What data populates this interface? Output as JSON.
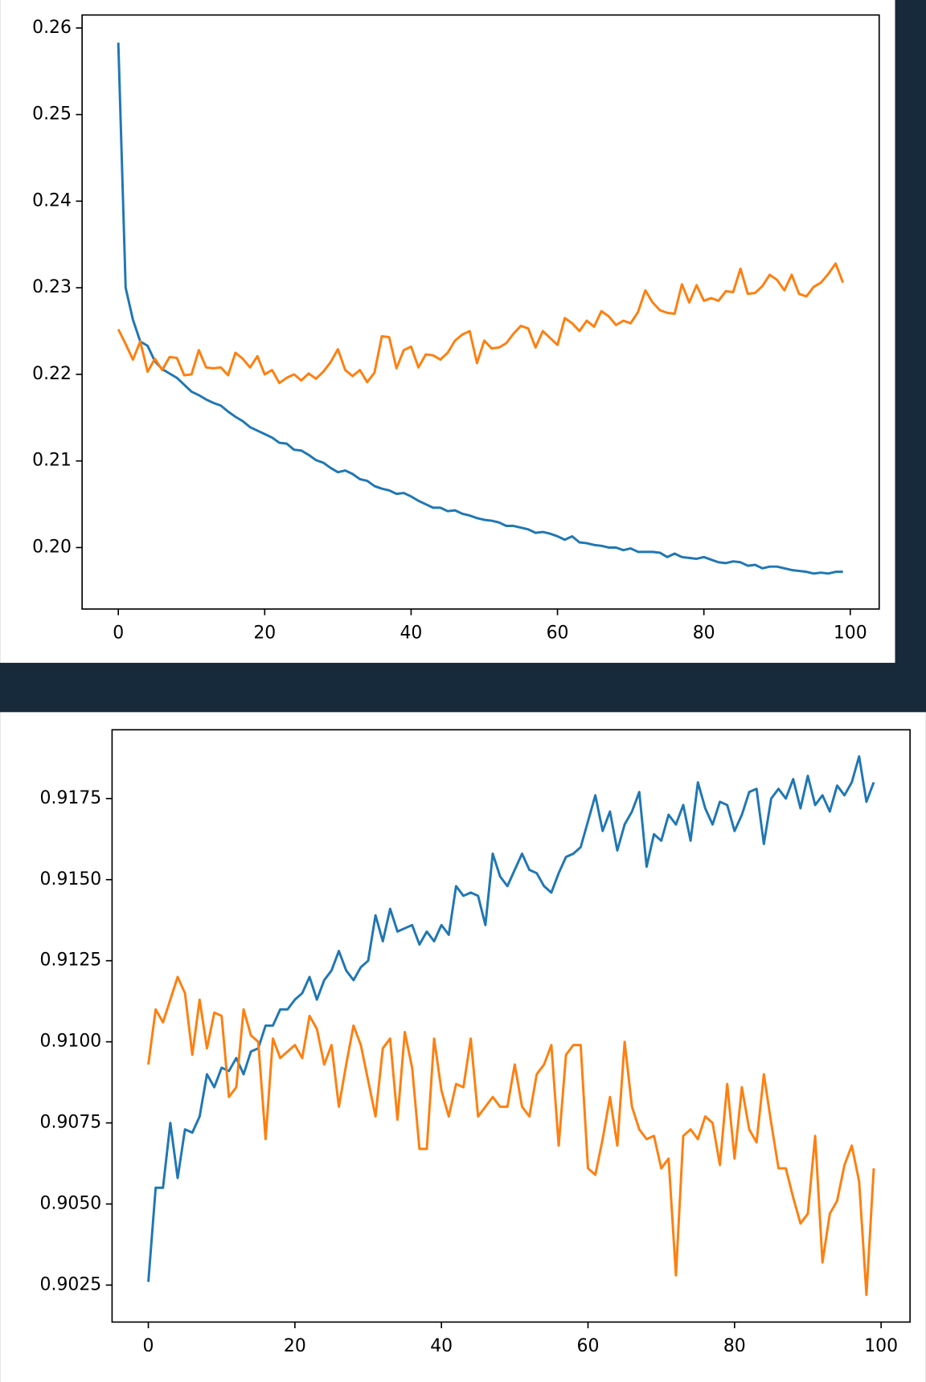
{
  "chart_data": [
    {
      "type": "line",
      "x": [
        0,
        1,
        2,
        3,
        4,
        5,
        6,
        7,
        8,
        9,
        10,
        11,
        12,
        13,
        14,
        15,
        16,
        17,
        18,
        19,
        20,
        21,
        22,
        23,
        24,
        25,
        26,
        27,
        28,
        29,
        30,
        31,
        32,
        33,
        34,
        35,
        36,
        37,
        38,
        39,
        40,
        41,
        42,
        43,
        44,
        45,
        46,
        47,
        48,
        49,
        50,
        51,
        52,
        53,
        54,
        55,
        56,
        57,
        58,
        59,
        60,
        61,
        62,
        63,
        64,
        65,
        66,
        67,
        68,
        69,
        70,
        71,
        72,
        73,
        74,
        75,
        76,
        77,
        78,
        79,
        80,
        81,
        82,
        83,
        84,
        85,
        86,
        87,
        88,
        89,
        90,
        91,
        92,
        93,
        94,
        95,
        96,
        97,
        98,
        99
      ],
      "series": [
        {
          "color": "#1f77b4",
          "values": [
            0.2583,
            0.23,
            0.2263,
            0.2238,
            0.2233,
            0.2215,
            0.2206,
            0.2201,
            0.2196,
            0.2188,
            0.218,
            0.2176,
            0.2171,
            0.2167,
            0.2164,
            0.2157,
            0.2151,
            0.2146,
            0.2139,
            0.2135,
            0.2131,
            0.2127,
            0.2121,
            0.212,
            0.2113,
            0.2112,
            0.2107,
            0.2101,
            0.2098,
            0.2092,
            0.2087,
            0.2089,
            0.2085,
            0.2079,
            0.2077,
            0.2071,
            0.2068,
            0.2066,
            0.2062,
            0.2063,
            0.2059,
            0.2054,
            0.205,
            0.2046,
            0.2046,
            0.2042,
            0.2043,
            0.2039,
            0.2037,
            0.2034,
            0.2032,
            0.2031,
            0.2029,
            0.2025,
            0.2025,
            0.2023,
            0.2021,
            0.2017,
            0.2018,
            0.2016,
            0.2013,
            0.2009,
            0.2013,
            0.2006,
            0.2005,
            0.2003,
            0.2002,
            0.2,
            0.2,
            0.1997,
            0.1999,
            0.1995,
            0.1995,
            0.1995,
            0.1994,
            0.1989,
            0.1993,
            0.1989,
            0.1988,
            0.1987,
            0.1989,
            0.1986,
            0.1983,
            0.1982,
            0.1984,
            0.1983,
            0.1979,
            0.198,
            0.1976,
            0.1978,
            0.1978,
            0.1976,
            0.1974,
            0.1973,
            0.1972,
            0.197,
            0.1971,
            0.197,
            0.1972,
            0.1972
          ]
        },
        {
          "color": "#ff7f0e",
          "values": [
            0.2252,
            0.2235,
            0.2217,
            0.2238,
            0.2203,
            0.2218,
            0.2205,
            0.222,
            0.2219,
            0.2199,
            0.22,
            0.2228,
            0.2208,
            0.2207,
            0.2208,
            0.2199,
            0.2225,
            0.2218,
            0.2208,
            0.2221,
            0.22,
            0.2205,
            0.219,
            0.2196,
            0.22,
            0.2193,
            0.2201,
            0.2195,
            0.2203,
            0.2214,
            0.2229,
            0.2205,
            0.2198,
            0.2205,
            0.2191,
            0.2202,
            0.2244,
            0.2243,
            0.2207,
            0.2228,
            0.2232,
            0.2208,
            0.2223,
            0.2222,
            0.2217,
            0.2225,
            0.2239,
            0.2246,
            0.225,
            0.2213,
            0.2239,
            0.223,
            0.2231,
            0.2236,
            0.2247,
            0.2256,
            0.2253,
            0.2231,
            0.225,
            0.2242,
            0.2234,
            0.2265,
            0.2259,
            0.225,
            0.2262,
            0.2255,
            0.2273,
            0.2267,
            0.2257,
            0.2262,
            0.2259,
            0.2272,
            0.2297,
            0.2283,
            0.2274,
            0.2271,
            0.227,
            0.2304,
            0.2283,
            0.2303,
            0.2285,
            0.2288,
            0.2285,
            0.2296,
            0.2295,
            0.2322,
            0.2293,
            0.2294,
            0.2302,
            0.2315,
            0.2309,
            0.2297,
            0.2315,
            0.2293,
            0.229,
            0.2301,
            0.2306,
            0.2316,
            0.2328,
            0.2306
          ]
        }
      ],
      "xlim": [
        -4.95,
        103.95
      ],
      "xticks": [
        0,
        20,
        40,
        60,
        80,
        100
      ],
      "ylim": [
        0.1929,
        0.2615
      ],
      "yticks": [
        {
          "value": 0.2,
          "label": "0.20"
        },
        0.21,
        0.22,
        0.23,
        0.24,
        0.25,
        0.26
      ]
    },
    {
      "type": "line",
      "x": [
        0,
        1,
        2,
        3,
        4,
        5,
        6,
        7,
        8,
        9,
        10,
        11,
        12,
        13,
        14,
        15,
        16,
        17,
        18,
        19,
        20,
        21,
        22,
        23,
        24,
        25,
        26,
        27,
        28,
        29,
        30,
        31,
        32,
        33,
        34,
        35,
        36,
        37,
        38,
        39,
        40,
        41,
        42,
        43,
        44,
        45,
        46,
        47,
        48,
        49,
        50,
        51,
        52,
        53,
        54,
        55,
        56,
        57,
        58,
        59,
        60,
        61,
        62,
        63,
        64,
        65,
        66,
        67,
        68,
        69,
        70,
        71,
        72,
        73,
        74,
        75,
        76,
        77,
        78,
        79,
        80,
        81,
        82,
        83,
        84,
        85,
        86,
        87,
        88,
        89,
        90,
        91,
        92,
        93,
        94,
        95,
        96,
        97,
        98,
        99
      ],
      "series": [
        {
          "color": "#1f77b4",
          "values": [
            0.9026,
            0.9055,
            0.9055,
            0.9075,
            0.9058,
            0.9073,
            0.9072,
            0.9077,
            0.909,
            0.9086,
            0.9092,
            0.9091,
            0.9095,
            0.909,
            0.9097,
            0.9098,
            0.9105,
            0.9105,
            0.911,
            0.911,
            0.9113,
            0.9115,
            0.912,
            0.9113,
            0.9119,
            0.9122,
            0.9128,
            0.9122,
            0.9119,
            0.9123,
            0.9125,
            0.9139,
            0.9131,
            0.9141,
            0.9134,
            0.9135,
            0.9136,
            0.913,
            0.9134,
            0.9131,
            0.9136,
            0.9133,
            0.9148,
            0.9145,
            0.9146,
            0.9145,
            0.9136,
            0.9158,
            0.9151,
            0.9148,
            0.9153,
            0.9158,
            0.9153,
            0.9152,
            0.9148,
            0.9146,
            0.9152,
            0.9157,
            0.9158,
            0.916,
            0.9168,
            0.9176,
            0.9165,
            0.9171,
            0.9159,
            0.9167,
            0.9171,
            0.9177,
            0.9154,
            0.9164,
            0.9162,
            0.917,
            0.9167,
            0.9173,
            0.9162,
            0.918,
            0.9172,
            0.9167,
            0.9174,
            0.9173,
            0.9165,
            0.917,
            0.9177,
            0.9178,
            0.9161,
            0.9175,
            0.9178,
            0.9175,
            0.9181,
            0.9172,
            0.9182,
            0.9173,
            0.9176,
            0.9171,
            0.9179,
            0.9176,
            0.918,
            0.9188,
            0.9174,
            0.918
          ]
        },
        {
          "color": "#ff7f0e",
          "values": [
            0.9093,
            0.911,
            0.9106,
            0.9113,
            0.912,
            0.9115,
            0.9096,
            0.9113,
            0.9098,
            0.9109,
            0.9108,
            0.9083,
            0.9086,
            0.911,
            0.9102,
            0.91,
            0.907,
            0.9101,
            0.9095,
            0.9097,
            0.9099,
            0.9095,
            0.9108,
            0.9104,
            0.9093,
            0.9099,
            0.908,
            0.9093,
            0.9105,
            0.9099,
            0.9088,
            0.9077,
            0.9098,
            0.9101,
            0.9076,
            0.9103,
            0.9092,
            0.9067,
            0.9067,
            0.9101,
            0.9085,
            0.9077,
            0.9087,
            0.9086,
            0.9101,
            0.9077,
            0.908,
            0.9083,
            0.908,
            0.908,
            0.9093,
            0.908,
            0.9077,
            0.909,
            0.9093,
            0.9099,
            0.9068,
            0.9096,
            0.9099,
            0.9099,
            0.9061,
            0.9059,
            0.907,
            0.9083,
            0.9068,
            0.91,
            0.908,
            0.9073,
            0.907,
            0.9071,
            0.9061,
            0.9064,
            0.9028,
            0.9071,
            0.9073,
            0.907,
            0.9077,
            0.9075,
            0.9062,
            0.9087,
            0.9064,
            0.9086,
            0.9073,
            0.9069,
            0.909,
            0.9075,
            0.9061,
            0.9061,
            0.9052,
            0.9044,
            0.9047,
            0.9071,
            0.9032,
            0.9047,
            0.9051,
            0.9062,
            0.9068,
            0.9057,
            0.9022,
            0.9061
          ]
        }
      ],
      "xlim": [
        -4.95,
        103.95
      ],
      "xticks": [
        0,
        20,
        40,
        60,
        80,
        100
      ],
      "ylim": [
        0.90136,
        0.91962
      ],
      "yticks": [
        0.9025,
        {
          "value": 0.905,
          "label": "0.9050"
        },
        0.9075,
        {
          "value": 0.91,
          "label": "0.9100"
        },
        0.9125,
        {
          "value": 0.915,
          "label": "0.9150"
        },
        0.9175
      ]
    }
  ]
}
